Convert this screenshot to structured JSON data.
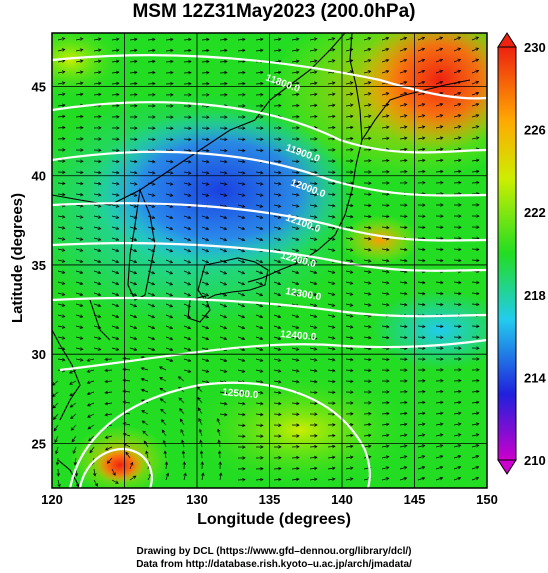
{
  "title": "MSM 12Z31May2023 (200.0hPa)",
  "xlabel": "Longitude (degrees)",
  "ylabel": "Latitude  (degrees)",
  "credits": [
    "Drawing by DCL (https://www.gfd–dennou.org/library/dcl/)",
    "Data from http://database.rish.kyoto–u.ac.jp/arch/jmadata/"
  ],
  "map": {
    "lon_range": [
      120,
      150
    ],
    "lat_range": [
      22.5,
      48
    ],
    "lon_ticks": [
      120,
      125,
      130,
      135,
      140,
      145,
      150
    ],
    "lat_ticks": [
      25,
      30,
      35,
      40,
      45
    ],
    "field": "temperature (K)",
    "colors": [
      "#cc00cc",
      "#2020dd",
      "#22ccee",
      "#22dd22",
      "#ccee00",
      "#ffaa00",
      "#ee2211"
    ]
  },
  "colorbar": {
    "ticks": [
      230,
      226,
      222,
      218,
      214,
      210
    ],
    "range": [
      210,
      230
    ]
  },
  "contours": [
    {
      "label": "11800.0"
    },
    {
      "label": "11900.0"
    },
    {
      "label": "12000.0"
    },
    {
      "label": "12100.0"
    },
    {
      "label": "12200.0"
    },
    {
      "label": "12300.0"
    },
    {
      "label": "12400.0"
    },
    {
      "label": "12500.0"
    }
  ]
}
